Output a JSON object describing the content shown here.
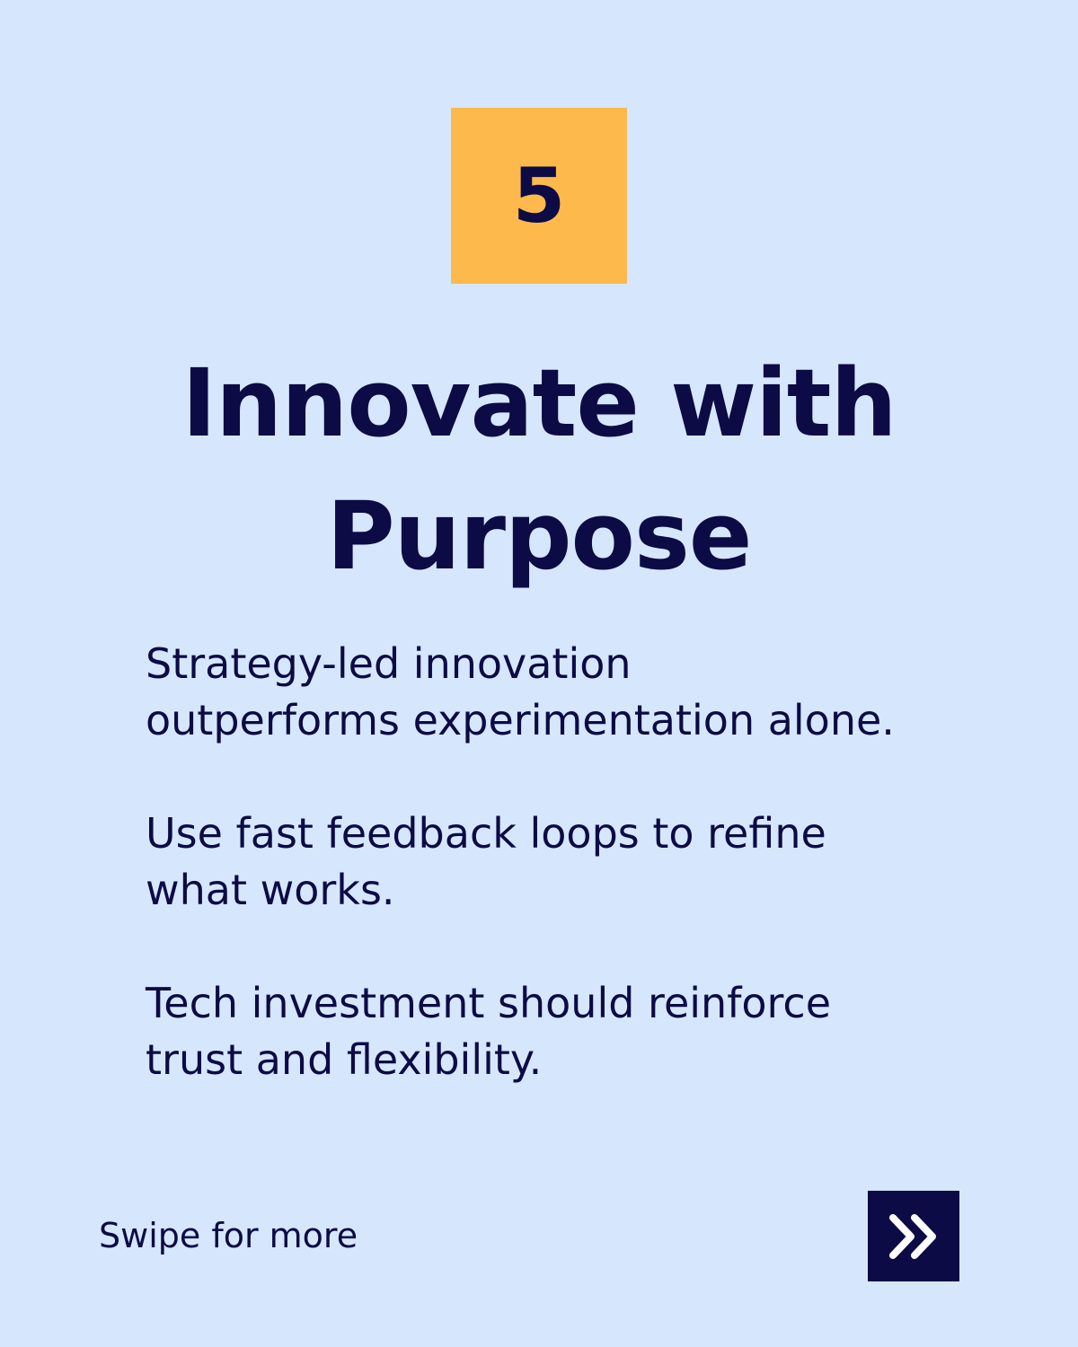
{
  "badge": {
    "number": "5",
    "color": "#fdb94c"
  },
  "title": {
    "line1": "Innovate with",
    "line2": "Purpose"
  },
  "paragraphs": [
    {
      "line1": "Strategy-led innovation",
      "line2": "outperforms experimentation alone."
    },
    {
      "line1": "Use fast feedback loops to refine",
      "line2": "what works."
    },
    {
      "line1": "Tech investment should reinforce",
      "line2": "trust and flexibility."
    }
  ],
  "footer": {
    "swipe_label": "Swipe for more",
    "next_icon": "double-chevron-right-icon"
  },
  "colors": {
    "background": "#d6e7fd",
    "text": "#0c0b45",
    "accent": "#fdb94c"
  }
}
